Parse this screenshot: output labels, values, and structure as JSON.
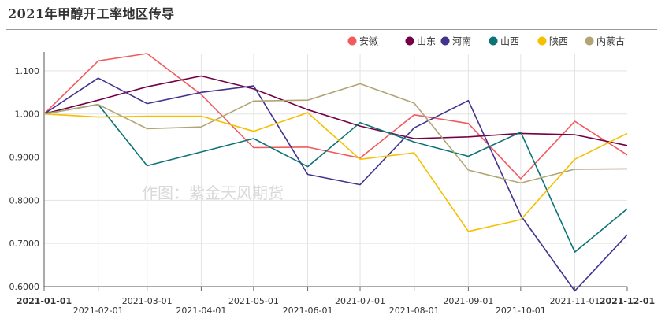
{
  "chart_data": {
    "type": "line",
    "title": "2021年甲醇开工率地区传导",
    "watermark": "作图：紫金天风期货",
    "x": [
      "2021-01-01",
      "2021-02-01",
      "2021-03-01",
      "2021-04-01",
      "2021-05-01",
      "2021-06-01",
      "2021-07-01",
      "2021-08-01",
      "2021-09-01",
      "2021-10-01",
      "2021-11-01",
      "2021-12-01"
    ],
    "ylim": [
      0.6,
      1.14
    ],
    "yticks": [
      "1.100",
      "1.000",
      "0.9000",
      "0.8000",
      "0.7000",
      "0.6000"
    ],
    "ytick_values": [
      1.1,
      1.0,
      0.9,
      0.8,
      0.7,
      0.6
    ],
    "series": [
      {
        "name": "安徽",
        "color": "#f25a5e",
        "values": [
          1.0,
          1.123,
          1.14,
          1.045,
          0.922,
          0.923,
          0.898,
          0.998,
          0.978,
          0.85,
          0.983,
          0.905
        ]
      },
      {
        "name": "山东",
        "color": "#750046",
        "values": [
          1.0,
          1.032,
          1.063,
          1.088,
          1.058,
          1.01,
          0.972,
          0.943,
          0.947,
          0.955,
          0.952,
          0.927
        ]
      },
      {
        "name": "河南",
        "color": "#44338d",
        "values": [
          1.0,
          1.083,
          1.024,
          1.05,
          1.065,
          0.86,
          0.836,
          0.968,
          1.031,
          0.765,
          0.59,
          0.72
        ]
      },
      {
        "name": "山西",
        "color": "#0d7377",
        "values": [
          1.0,
          1.022,
          0.88,
          0.912,
          0.943,
          0.878,
          0.98,
          0.935,
          0.902,
          0.958,
          0.68,
          0.78
        ]
      },
      {
        "name": "陕西",
        "color": "#f5c000",
        "values": [
          1.0,
          0.993,
          0.995,
          0.995,
          0.96,
          1.003,
          0.895,
          0.91,
          0.728,
          0.755,
          0.895,
          0.955
        ]
      },
      {
        "name": "内蒙古",
        "color": "#b1a574",
        "values": [
          1.0,
          1.022,
          0.966,
          0.97,
          1.03,
          1.032,
          1.07,
          1.025,
          0.87,
          0.84,
          0.872,
          0.873
        ]
      }
    ],
    "legend_position": "top-right",
    "grid": true
  }
}
